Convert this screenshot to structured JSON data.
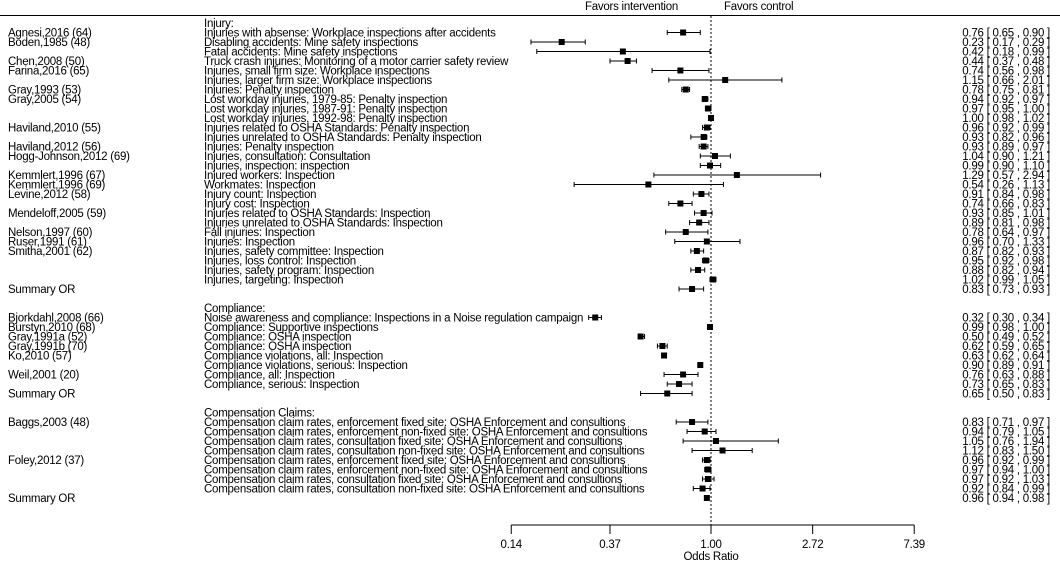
{
  "chart_data": {
    "type": "forest",
    "header": {
      "left": "Favors intervention",
      "right": "Favors control"
    },
    "xlabel": "Odds Ratio",
    "x_scale": "log",
    "xlim": [
      0.14,
      7.39
    ],
    "x_ticks": [
      "0.14",
      "0.37",
      "1.00",
      "2.72",
      "7.39"
    ],
    "reference_line": 1.0,
    "groups": [
      {
        "title": "Injury:",
        "rows": [
          {
            "study": "Agnesi,2016 (64)",
            "outcome": "Injuries with absense: Workplace inspections after accidents",
            "or": "0.76",
            "lo": "0.65",
            "hi": "0.90"
          },
          {
            "study": "Boden,1985 (48)",
            "outcome": "Disabling accidents: Mine safety inspections",
            "or": "0.23",
            "lo": "0.17",
            "hi": "0.29"
          },
          {
            "study": "",
            "outcome": "Fatal accidents: Mine safety inspections",
            "or": "0.42",
            "lo": "0.18",
            "hi": "0.99"
          },
          {
            "study": "Chen,2008 (50)",
            "outcome": "Truck crash injuries: Monitoring of a motor carrier safety review",
            "or": "0.44",
            "lo": "0.37",
            "hi": "0.48"
          },
          {
            "study": "Farina,2016 (65)",
            "outcome": "Injuries, small firm size: Workplace inspections",
            "or": "0.74",
            "lo": "0.56",
            "hi": "0.98"
          },
          {
            "study": "",
            "outcome": "Injuries, larger firm size: Workplace inspections",
            "or": "1.15",
            "lo": "0.66",
            "hi": "2.01"
          },
          {
            "study": "Gray,1993 (53)",
            "outcome": "Injuries: Penalty inspection",
            "or": "0.78",
            "lo": "0.75",
            "hi": "0.81"
          },
          {
            "study": "Gray,2005 (54)",
            "outcome": "Lost workday injuries, 1979-85: Penalty inspection",
            "or": "0.94",
            "lo": "0.92",
            "hi": "0.97"
          },
          {
            "study": "",
            "outcome": "Lost workday injuries, 1987-91: Penalty inspection",
            "or": "0.97",
            "lo": "0.95",
            "hi": "1.00"
          },
          {
            "study": "",
            "outcome": "Lost workday injuries, 1992-98: Penalty inspection",
            "or": "1.00",
            "lo": "0.98",
            "hi": "1.02"
          },
          {
            "study": "Haviland,2010 (55)",
            "outcome": "Injuries related to OSHA  Standards: Penalty inspection",
            "or": "0.96",
            "lo": "0.92",
            "hi": "0.99"
          },
          {
            "study": "",
            "outcome": "Injuries unrelated to OSHA Standards: Penalty inspection",
            "or": "0.93",
            "lo": "0.82",
            "hi": "0.96"
          },
          {
            "study": "Haviland,2012 (56)",
            "outcome": "Injuries: Penalty inspection",
            "or": "0.93",
            "lo": "0.89",
            "hi": "0.97"
          },
          {
            "study": "Hogg-Johnson,2012 (69)",
            "outcome": "Injuries, consultation: Consultation",
            "or": "1.04",
            "lo": "0.90",
            "hi": "1.21"
          },
          {
            "study": "",
            "outcome": "Injuries, inspection: inspection",
            "or": "0.99",
            "lo": "0.90",
            "hi": "1.10"
          },
          {
            "study": "Kemmlert,1996 (67)",
            "outcome": "Injured workers: Inspection",
            "or": "1.29",
            "lo": "0.57",
            "hi": "2.94"
          },
          {
            "study": "Kemmlert,1996 (69)",
            "outcome": "Workmates: Inspection",
            "or": "0.54",
            "lo": "0.26",
            "hi": "1.13"
          },
          {
            "study": "Levine,2012 (58)",
            "outcome": "Injury count: Inspection",
            "or": "0.91",
            "lo": "0.84",
            "hi": "0.98"
          },
          {
            "study": "",
            "outcome": "Injury cost: Inspection",
            "or": "0.74",
            "lo": "0.66",
            "hi": "0.83"
          },
          {
            "study": "Mendeloff,2005 (59)",
            "outcome": "Injuries related to OSHA  Standards: Inspection",
            "or": "0.93",
            "lo": "0.85",
            "hi": "1.01"
          },
          {
            "study": "",
            "outcome": "Injuries unrelated to OSHA Standards: Inspection",
            "or": "0.89",
            "lo": "0.81",
            "hi": "0.98"
          },
          {
            "study": "Nelson,1997 (60)",
            "outcome": "Fall injuries: Inspection",
            "or": "0.78",
            "lo": "0.64",
            "hi": "0.97"
          },
          {
            "study": "Ruser,1991 (61)",
            "outcome": "Injuries: Inspection",
            "or": "0.96",
            "lo": "0.70",
            "hi": "1.33"
          },
          {
            "study": "Smitha,2001 (62)",
            "outcome": "Injuries, safety committee: Inspection",
            "or": "0.87",
            "lo": "0.82",
            "hi": "0.93"
          },
          {
            "study": "",
            "outcome": "Injuries, loss control: Inspection",
            "or": "0.95",
            "lo": "0.92",
            "hi": "0.98"
          },
          {
            "study": "",
            "outcome": "Injuries, safety program: Inspection",
            "or": "0.88",
            "lo": "0.82",
            "hi": "0.94"
          },
          {
            "study": "",
            "outcome": "Injuries, targeting: Inspection",
            "or": "1.02",
            "lo": "0.99",
            "hi": "1.05"
          }
        ],
        "summary": {
          "label": "Summary OR",
          "or": "0.83",
          "lo": "0.73",
          "hi": "0.93"
        }
      },
      {
        "title": "Compliance:",
        "rows": [
          {
            "study": "Bjorkdahl,2008 (66)",
            "outcome": "Noise awareness and compliance: Inspections in a Noise regulation campaign",
            "or": "0.32",
            "lo": "0.30",
            "hi": "0.34"
          },
          {
            "study": "Burstyn,2010 (68)",
            "outcome": "Compliance: Supportive inspections",
            "or": "0.99",
            "lo": "0.98",
            "hi": "1.00"
          },
          {
            "study": "Gray,1991a (52)",
            "outcome": "Compliance: OSHA inspection",
            "or": "0.50",
            "lo": "0.49",
            "hi": "0.52"
          },
          {
            "study": "Gray,1991b (70)",
            "outcome": "Compliance: OSHA inspection",
            "or": "0.62",
            "lo": "0.59",
            "hi": "0.65"
          },
          {
            "study": "Ko,2010 (57)",
            "outcome": "Compliance violations, all: Inspection",
            "or": "0.63",
            "lo": "0.62",
            "hi": "0.64"
          },
          {
            "study": "",
            "outcome": "Compliance violations, serious: Inspection",
            "or": "0.90",
            "lo": "0.89",
            "hi": "0.91"
          },
          {
            "study": "Weil,2001 (20)",
            "outcome": "Compliance, all: Inspection",
            "or": "0.76",
            "lo": "0.63",
            "hi": "0.88"
          },
          {
            "study": "",
            "outcome": "Compliance, serious: Inspection",
            "or": "0.73",
            "lo": "0.65",
            "hi": "0.83"
          }
        ],
        "summary": {
          "label": "Summary OR",
          "or": "0.65",
          "lo": "0.50",
          "hi": "0.83"
        }
      },
      {
        "title": "Compensation Claims:",
        "rows": [
          {
            "study": "Baggs,2003 (48)",
            "outcome": "Compensation claim rates, enforcement fixed site: OSHA Enforcement and consultions",
            "or": "0.83",
            "lo": "0.71",
            "hi": "0.97"
          },
          {
            "study": "",
            "outcome": "Compensation claim rates, enforcement non-fixed site: OSHA Enforcement and consultions",
            "or": "0.94",
            "lo": "0.79",
            "hi": "1.05"
          },
          {
            "study": "",
            "outcome": "Compensation claim rates, consultation fixed site: OSHA Enforcement and consultions",
            "or": "1.05",
            "lo": "0.76",
            "hi": "1.94"
          },
          {
            "study": "",
            "outcome": "Compensation claim rates, consultation non-fixed site: OSHA Enforcement and consultions",
            "or": "1.12",
            "lo": "0.83",
            "hi": "1.50"
          },
          {
            "study": "Foley,2012 (37)",
            "outcome": "Compensation claim rates, enforcement fixed site: OSHA Enforcement and consultions",
            "or": "0.96",
            "lo": "0.92",
            "hi": "0.99"
          },
          {
            "study": "",
            "outcome": "Compensation claim rates, enforcement non-fixed site: OSHA Enforcement and consultions",
            "or": "0.97",
            "lo": "0.94",
            "hi": "1.00"
          },
          {
            "study": "",
            "outcome": "Compensation claim rates, consultation fixed site: OSHA Enforcement and consultions",
            "or": "0.97",
            "lo": "0.92",
            "hi": "1.03"
          },
          {
            "study": "",
            "outcome": "Compensation claim rates, consultation non-fixed site: OSHA Enforcement and consultions",
            "or": "0.92",
            "lo": "0.84",
            "hi": "0.99"
          }
        ],
        "summary": {
          "label": "Summary OR",
          "or": "0.96",
          "lo": "0.94",
          "hi": "0.98"
        }
      }
    ]
  }
}
